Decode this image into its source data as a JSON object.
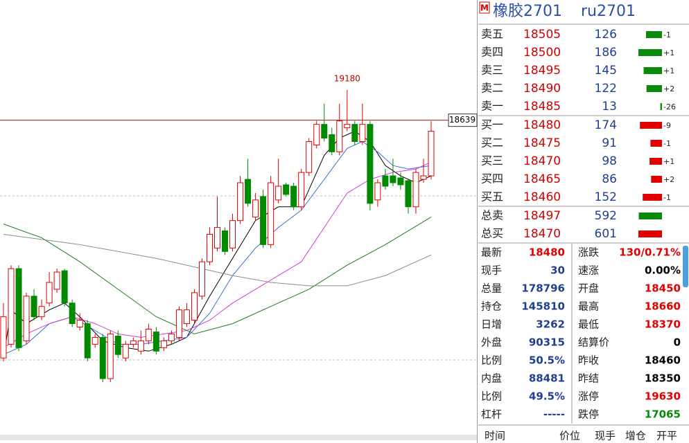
{
  "header": {
    "badge": "M",
    "name": "橡胶2701",
    "code": "ru2701"
  },
  "chart_data": {
    "type": "candlestick",
    "up_color": "#e00000",
    "down_color": "#008a00",
    "open": [
      14383,
      14629,
      15982,
      14691,
      15490,
      15121,
      15367,
      15613,
      15945,
      15367,
      14937,
      14998,
      14629,
      14752,
      14014,
      14776,
      14383,
      14629,
      14506,
      14691,
      14850,
      14568,
      14691,
      14752,
      14998,
      15060,
      15490,
      16105,
      16351,
      16659,
      16351,
      16843,
      17581,
      16905,
      17274,
      16413,
      17212,
      17483,
      17458,
      17089,
      17704,
      18196,
      18565,
      18380,
      18073,
      18503,
      18565,
      18257,
      18565,
      17212,
      17643,
      17643,
      17606,
      17557,
      17089,
      17581,
      17643
    ],
    "high": [
      15367,
      16044,
      16044,
      15552,
      15613,
      15429,
      15921,
      15982,
      15982,
      15429,
      15183,
      15060,
      14814,
      14814,
      14875,
      14875,
      14691,
      14752,
      14875,
      14998,
      14937,
      14752,
      14875,
      15306,
      15367,
      15613,
      16167,
      16720,
      17274,
      16720,
      16966,
      17643,
      17950,
      17335,
      17397,
      17643,
      17950,
      17520,
      17520,
      17766,
      18319,
      18626,
      18934,
      18503,
      18934,
      19180,
      18626,
      18934,
      18626,
      17581,
      17766,
      17950,
      17704,
      17581,
      17766,
      17950,
      18626
    ],
    "low": [
      14322,
      14568,
      14506,
      14629,
      15060,
      15060,
      15306,
      15552,
      15306,
      14937,
      14875,
      14322,
      14568,
      13952,
      13952,
      14383,
      14322,
      14568,
      14445,
      14629,
      14445,
      14506,
      14629,
      14691,
      14937,
      14998,
      15429,
      16044,
      16290,
      16228,
      16290,
      16782,
      17089,
      16843,
      16351,
      16351,
      17151,
      17274,
      17028,
      17028,
      17643,
      18135,
      18257,
      18012,
      18012,
      18442,
      18196,
      18196,
      17028,
      17089,
      17397,
      17458,
      17397,
      16966,
      16966,
      17520,
      17581
    ],
    "close": [
      15121,
      15982,
      14568,
      15490,
      15121,
      15306,
      15736,
      15921,
      15367,
      14998,
      15060,
      14383,
      14752,
      14014,
      14814,
      14445,
      14629,
      14691,
      14691,
      14900,
      14506,
      14691,
      14814,
      15244,
      15244,
      15552,
      16105,
      16597,
      16720,
      16290,
      16843,
      17520,
      17151,
      17212,
      16413,
      17520,
      17458,
      17311,
      17089,
      17704,
      18257,
      18565,
      18319,
      18073,
      18626,
      18565,
      18257,
      18565,
      17151,
      17520,
      17458,
      17520,
      17483,
      17089,
      17704,
      17643,
      18442
    ],
    "max_label": 19180,
    "price_line": 18639,
    "lines": [
      {
        "color": "#000000",
        "x": [
          0,
          1,
          3,
          6,
          8,
          10,
          13,
          16,
          19,
          22,
          24,
          27,
          30,
          33,
          36,
          39,
          42,
          44,
          46,
          48,
          50,
          52,
          54,
          56
        ],
        "values": [
          14383,
          15244,
          14998,
          15244,
          15367,
          15121,
          14691,
          14568,
          14506,
          14629,
          14752,
          15490,
          16167,
          16843,
          17089,
          17089,
          18012,
          18319,
          18442,
          18257,
          17827,
          17643,
          17520,
          17643
        ]
      },
      {
        "color": "#3a6fd8",
        "x": [
          0,
          3,
          6,
          9,
          12,
          15,
          18,
          21,
          24,
          27,
          30,
          33,
          36,
          39,
          42,
          45,
          47,
          49,
          51,
          53,
          56
        ],
        "values": [
          14445,
          14629,
          14998,
          15121,
          14875,
          14629,
          14629,
          14691,
          14752,
          15183,
          15859,
          16351,
          16720,
          17028,
          17581,
          18135,
          18257,
          18073,
          17827,
          17766,
          17827
        ]
      },
      {
        "color": "#d23cd2",
        "x": [
          0,
          3,
          6,
          9,
          12,
          15,
          18,
          21,
          24,
          27,
          30,
          33,
          36,
          39,
          42,
          45,
          48,
          51,
          54,
          56
        ],
        "values": [
          14568,
          14814,
          14998,
          15121,
          14998,
          14814,
          14752,
          14814,
          14875,
          15060,
          15367,
          15613,
          15859,
          16105,
          16720,
          17335,
          17581,
          17704,
          17766,
          17889
        ]
      },
      {
        "color": "#1f7a1f",
        "x": [
          0,
          5,
          10,
          15,
          20,
          25,
          30,
          35,
          40,
          45,
          50,
          56
        ],
        "values": [
          16782,
          16536,
          16105,
          15613,
          15121,
          14814,
          14998,
          15306,
          15613,
          16044,
          16413,
          16905
        ]
      },
      {
        "color": "#8c8c8c",
        "x": [
          0,
          10,
          20,
          30,
          35,
          40,
          45,
          50,
          56
        ],
        "values": [
          16597,
          16413,
          16167,
          15859,
          15736,
          15675,
          15675,
          15859,
          16228
        ]
      }
    ]
  },
  "order_book": {
    "ask_color": "#0a8a0a",
    "bid_color": "#e00000",
    "asks": [
      {
        "label": "卖五",
        "price": 18505,
        "volume": 126,
        "change": "-1"
      },
      {
        "label": "卖四",
        "price": 18500,
        "volume": 186,
        "change": "+1"
      },
      {
        "label": "卖三",
        "price": 18495,
        "volume": 145,
        "change": "+1"
      },
      {
        "label": "卖二",
        "price": 18490,
        "volume": 122,
        "change": "+2"
      },
      {
        "label": "卖一",
        "price": 18485,
        "volume": 13,
        "change": "-26"
      }
    ],
    "bids": [
      {
        "label": "买一",
        "price": 18480,
        "volume": 174,
        "change": "-9"
      },
      {
        "label": "买二",
        "price": 18475,
        "volume": 91,
        "change": "-1"
      },
      {
        "label": "买三",
        "price": 18470,
        "volume": 98,
        "change": "+1"
      },
      {
        "label": "买四",
        "price": 18465,
        "volume": 86,
        "change": "+2"
      },
      {
        "label": "买五",
        "price": 18460,
        "volume": 152,
        "change": "-1"
      }
    ],
    "totals": [
      {
        "label": "总卖",
        "price": 18497,
        "volume": 592
      },
      {
        "label": "总买",
        "price": 18470,
        "volume": 601
      }
    ]
  },
  "stats": {
    "left": [
      {
        "label": "最新",
        "value": 18480,
        "color": "#e00000"
      },
      {
        "label": "现手",
        "value": 30,
        "color": "#1f3f8f"
      },
      {
        "label": "总量",
        "value": 178796,
        "color": "#1f3f8f"
      },
      {
        "label": "持仓",
        "value": 145810,
        "color": "#1f3f8f"
      },
      {
        "label": "日增",
        "value": 3262,
        "color": "#1f3f8f"
      },
      {
        "label": "外盘",
        "value": 90315,
        "color": "#1f3f8f"
      },
      {
        "label": "比例",
        "value": "50.5%",
        "color": "#1f3f8f"
      },
      {
        "label": "内盘",
        "value": 88481,
        "color": "#1f3f8f"
      },
      {
        "label": "比例",
        "value": "49.5%",
        "color": "#1f3f8f"
      },
      {
        "label": "杠杆",
        "value": "-----",
        "color": "#1f3f8f"
      }
    ],
    "right": [
      {
        "label": "涨跌",
        "value": "130/0.71%",
        "color": "#e00000"
      },
      {
        "label": "速涨",
        "value": "0.00%",
        "color": "#000000"
      },
      {
        "label": "开盘",
        "value": 18450,
        "color": "#e00000"
      },
      {
        "label": "最高",
        "value": 18660,
        "color": "#e00000"
      },
      {
        "label": "最低",
        "value": 18370,
        "color": "#e00000"
      },
      {
        "label": "结算价",
        "value": 0,
        "color": "#000000"
      },
      {
        "label": "昨收",
        "value": 18460,
        "color": "#000000"
      },
      {
        "label": "昨结",
        "value": 18350,
        "color": "#000000"
      },
      {
        "label": "涨停",
        "value": 19630,
        "color": "#e00000"
      },
      {
        "label": "跌停",
        "value": 17065,
        "color": "#0a8a0a"
      }
    ]
  },
  "footer": {
    "columns": [
      "时间",
      "价位",
      "现手",
      "增仓",
      "开平"
    ]
  }
}
